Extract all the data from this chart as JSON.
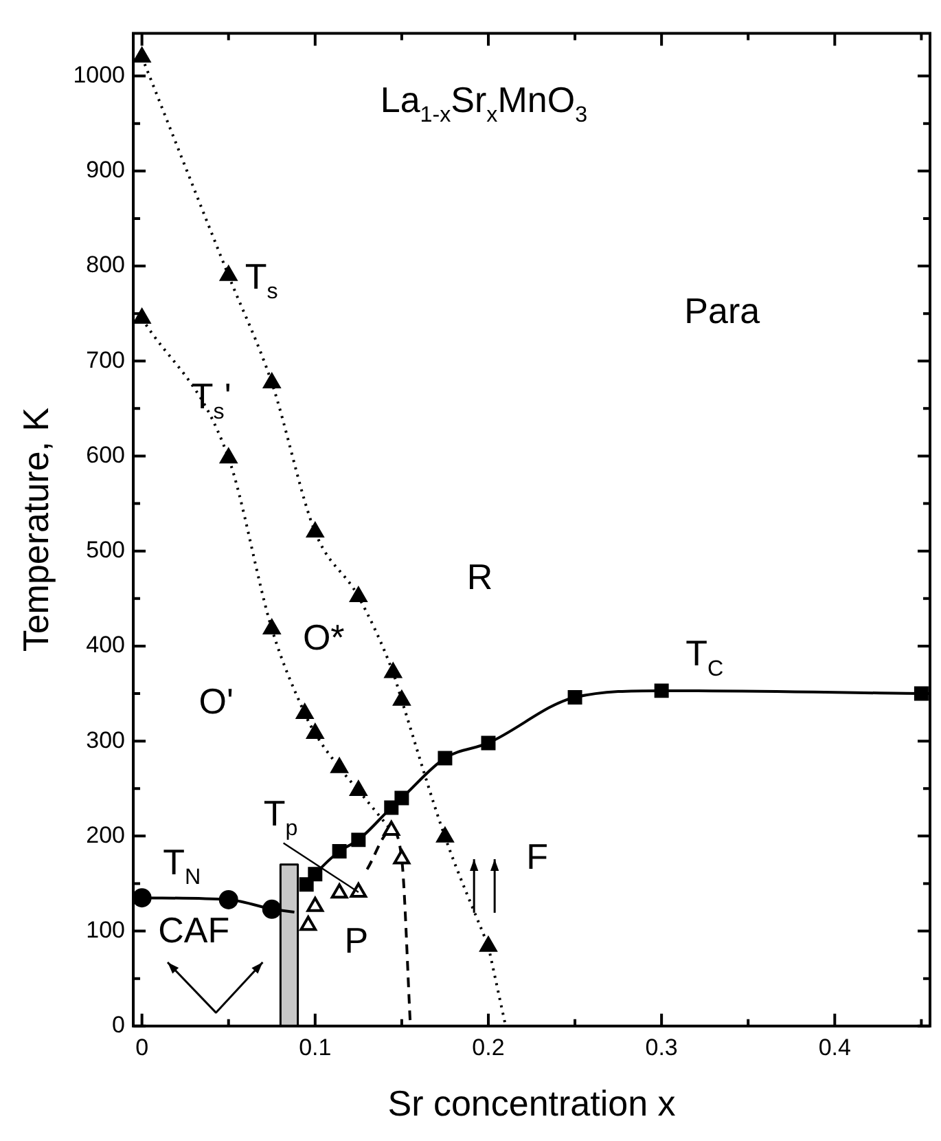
{
  "chart_data": {
    "type": "line",
    "title": "La$_{1-x}$Sr$_{x}$MnO$_{3}$",
    "xlabel": "Sr concentration x",
    "ylabel": "Temperature, K",
    "xlim": [
      -0.005,
      0.455
    ],
    "ylim": [
      0,
      1045
    ],
    "xticks": [
      0,
      {
        "value": 0.05,
        "label": null
      },
      0.1,
      {
        "value": 0.15,
        "label": null
      },
      0.2,
      {
        "value": 0.25,
        "label": null
      },
      0.3,
      {
        "value": 0.35,
        "label": null
      },
      0.4,
      {
        "value": 0.45,
        "label": null
      }
    ],
    "yticks": [
      0,
      {
        "value": 50,
        "label": null
      },
      100,
      {
        "value": 150,
        "label": null
      },
      200,
      {
        "value": 250,
        "label": null
      },
      300,
      {
        "value": 350,
        "label": null
      },
      400,
      {
        "value": 450,
        "label": null
      },
      500,
      {
        "value": 550,
        "label": null
      },
      600,
      {
        "value": 650,
        "label": null
      },
      700,
      {
        "value": 750,
        "label": null
      },
      800,
      {
        "value": 850,
        "label": null
      },
      900,
      {
        "value": 950,
        "label": null
      },
      1000
    ],
    "series": [
      {
        "type": "line",
        "color": "#000000",
        "marker": "triangle",
        "line_style": "dotted",
        "x": [
          0,
          0.05,
          0.075,
          0.1,
          0.125,
          0.145,
          0.15,
          0.175,
          0.2
        ],
        "values": [
          1020,
          790,
          677,
          520,
          452,
          372,
          343,
          199,
          84
        ]
      },
      {
        "type": "line",
        "color": "#000000",
        "marker": "none",
        "line_style": "dotted",
        "x": [
          0.2,
          0.21
        ],
        "values": [
          84,
          0
        ]
      },
      {
        "type": "line",
        "color": "#000000",
        "marker": "triangle",
        "line_style": "dotted",
        "x": [
          0,
          0.05,
          0.075,
          0.094,
          0.1,
          0.114,
          0.125
        ],
        "values": [
          745,
          598,
          418,
          329,
          308,
          272,
          248
        ]
      },
      {
        "type": "line",
        "color": "#000000",
        "marker": "none",
        "line_style": "dotted",
        "x": [
          0.125,
          0.144
        ],
        "values": [
          248,
          206
        ]
      },
      {
        "type": "line",
        "color": "#000000",
        "marker": "square",
        "line_style": "solid",
        "x": [
          0.095,
          0.1,
          0.114,
          0.125,
          0.144,
          0.15,
          0.175,
          0.2,
          0.25,
          0.3,
          0.45
        ],
        "values": [
          149,
          160,
          184,
          196,
          230,
          240,
          282,
          298,
          346,
          353,
          350
        ]
      },
      {
        "type": "line",
        "color": "#000000",
        "marker": "circle",
        "line_style": "solid",
        "x": [
          0,
          0.05,
          0.075
        ],
        "values": [
          135,
          133,
          123
        ]
      },
      {
        "type": "line",
        "color": "#000000",
        "marker": "none",
        "line_style": "solid",
        "x": [
          0.075,
          0.088
        ],
        "values": [
          123,
          120
        ]
      },
      {
        "type": "scatter",
        "color": "#ffffff",
        "marker": "triangle",
        "x": [
          0.096,
          0.1,
          0.114,
          0.125,
          0.144,
          0.15
        ],
        "values": [
          106,
          126,
          140,
          141,
          206,
          176
        ]
      },
      {
        "type": "line",
        "color": "#000000",
        "marker": "none",
        "line_style": "dashed",
        "x": [
          0.13,
          0.144,
          0.15,
          0.155
        ],
        "values": [
          165,
          206,
          176,
          0
        ]
      },
      {
        "type": "area",
        "color": "#c8c8c8",
        "marker": "none",
        "line_style": "solid",
        "x": [
          0.08,
          0.08,
          0.09,
          0.09
        ],
        "values": [
          0,
          170,
          170,
          0
        ]
      }
    ],
    "annotations": [
      "T$_{s}$",
      "T$_{s}$'",
      "T$_{C}$",
      "T$_{N}$",
      {
        "text": "T$_{p}$",
        "x": 0.125,
        "y": 141
      },
      "Para",
      "R",
      "O*",
      "O'",
      "CAF",
      "P",
      "F"
    ]
  }
}
